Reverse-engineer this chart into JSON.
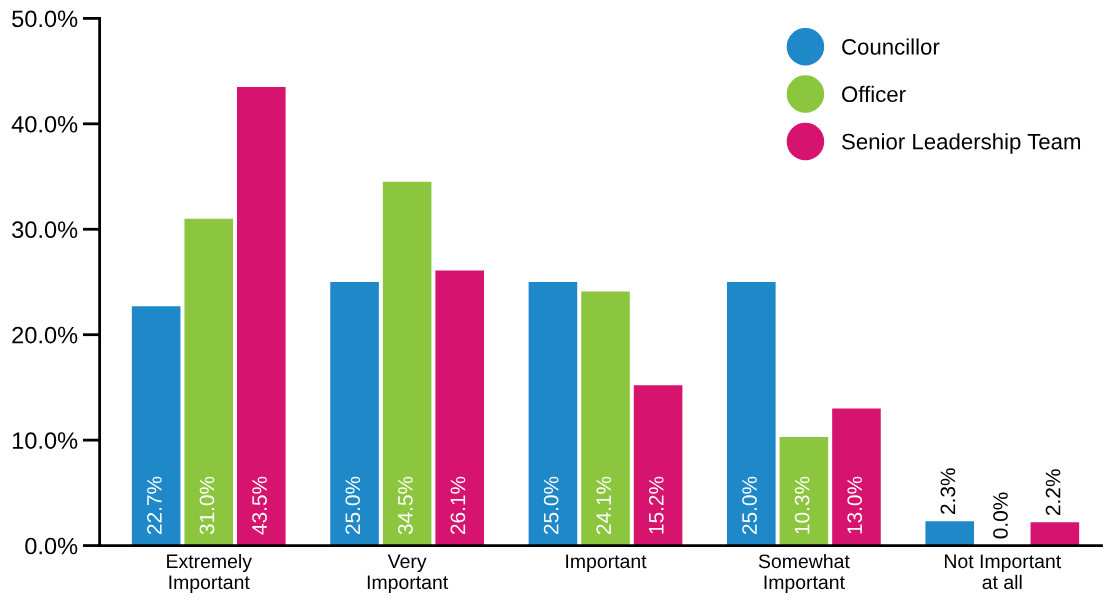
{
  "chart_data": {
    "type": "bar",
    "categories": [
      "Extremely\nImportant",
      "Very\nImportant",
      "Important",
      "Somewhat\nImportant",
      "Not Important\nat all"
    ],
    "series": [
      {
        "name": "Councillor",
        "color": "#1e88c9",
        "values": [
          22.7,
          25.0,
          25.0,
          25.0,
          2.3
        ],
        "value_labels": [
          "22.7%",
          "25.0%",
          "25.0%",
          "25.0%",
          "2.3%"
        ]
      },
      {
        "name": "Officer",
        "color": "#8cc63f",
        "values": [
          31.0,
          34.5,
          24.1,
          10.3,
          0.0
        ],
        "value_labels": [
          "31.0%",
          "34.5%",
          "24.1%",
          "10.3%",
          "0.0%"
        ]
      },
      {
        "name": "Senior Leadership Team",
        "color": "#d6136f",
        "values": [
          43.5,
          26.1,
          15.2,
          13.0,
          2.2
        ],
        "value_labels": [
          "43.5%",
          "26.1%",
          "15.2%",
          "13.0%",
          "2.2%"
        ]
      }
    ],
    "ylim": [
      0,
      50
    ],
    "yticks": [
      {
        "value": 0,
        "label": "0.0%"
      },
      {
        "value": 10,
        "label": "10.0%"
      },
      {
        "value": 20,
        "label": "20.0%"
      },
      {
        "value": 30,
        "label": "30.0%"
      },
      {
        "value": 40,
        "label": "40.0%"
      },
      {
        "value": 50,
        "label": "50.0%"
      }
    ],
    "grid": false,
    "legend": "top right"
  }
}
